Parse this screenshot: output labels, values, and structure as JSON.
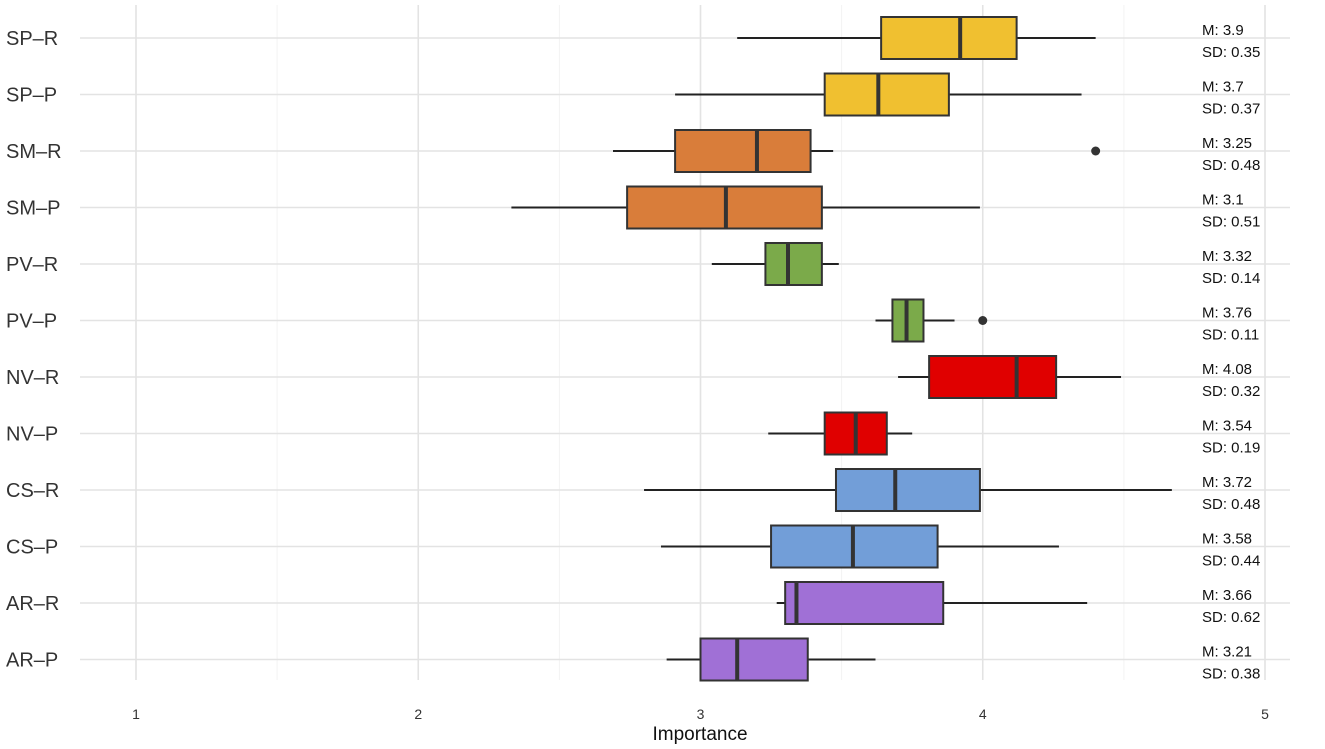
{
  "chart_data": {
    "type": "boxplot",
    "orientation": "horizontal",
    "title": "",
    "xlabel": "Importance",
    "ylabel": "",
    "xlim": [
      0.8,
      5.2
    ],
    "xticks": [
      1,
      2,
      3,
      4,
      5
    ],
    "xtick_labels": [
      "1",
      "2",
      "3",
      "4",
      "5"
    ],
    "grid": true,
    "categories": [
      "SP–R",
      "SP–P",
      "SM–R",
      "SM–P",
      "PV–R",
      "PV–P",
      "NV–R",
      "NV–P",
      "CS–R",
      "CS–P",
      "AR–R",
      "AR–P"
    ],
    "boxes": [
      {
        "label": "SP–R",
        "whisker_low": 3.13,
        "q1": 3.64,
        "median": 3.92,
        "q3": 4.12,
        "whisker_high": 4.4,
        "outliers": [],
        "color": "#F0C030",
        "mean_label": "M: 3.9",
        "sd_label": "SD: 0.35"
      },
      {
        "label": "SP–P",
        "whisker_low": 2.91,
        "q1": 3.44,
        "median": 3.63,
        "q3": 3.88,
        "whisker_high": 4.35,
        "outliers": [],
        "color": "#F0C030",
        "mean_label": "M: 3.7",
        "sd_label": "SD: 0.37"
      },
      {
        "label": "SM–R",
        "whisker_low": 2.69,
        "q1": 2.91,
        "median": 3.2,
        "q3": 3.39,
        "whisker_high": 3.47,
        "outliers": [
          4.4
        ],
        "color": "#D97D3A",
        "mean_label": "M: 3.25",
        "sd_label": "SD: 0.48"
      },
      {
        "label": "SM–P",
        "whisker_low": 2.33,
        "q1": 2.74,
        "median": 3.09,
        "q3": 3.43,
        "whisker_high": 3.99,
        "outliers": [],
        "color": "#D97D3A",
        "mean_label": "M: 3.1",
        "sd_label": "SD: 0.51"
      },
      {
        "label": "PV–R",
        "whisker_low": 3.04,
        "q1": 3.23,
        "median": 3.31,
        "q3": 3.43,
        "whisker_high": 3.49,
        "outliers": [],
        "color": "#7BAA4A",
        "mean_label": "M: 3.32",
        "sd_label": "SD: 0.14"
      },
      {
        "label": "PV–P",
        "whisker_low": 3.62,
        "q1": 3.68,
        "median": 3.73,
        "q3": 3.79,
        "whisker_high": 3.9,
        "outliers": [
          4.0
        ],
        "color": "#7BAA4A",
        "mean_label": "M: 3.76",
        "sd_label": "SD: 0.11"
      },
      {
        "label": "NV–R",
        "whisker_low": 3.7,
        "q1": 3.81,
        "median": 4.12,
        "q3": 4.26,
        "whisker_high": 4.49,
        "outliers": [],
        "color": "#E00000",
        "mean_label": "M: 4.08",
        "sd_label": "SD: 0.32"
      },
      {
        "label": "NV–P",
        "whisker_low": 3.24,
        "q1": 3.44,
        "median": 3.55,
        "q3": 3.66,
        "whisker_high": 3.75,
        "outliers": [],
        "color": "#E00000",
        "mean_label": "M: 3.54",
        "sd_label": "SD: 0.19"
      },
      {
        "label": "CS–R",
        "whisker_low": 2.8,
        "q1": 3.48,
        "median": 3.69,
        "q3": 3.99,
        "whisker_high": 4.67,
        "outliers": [],
        "color": "#729ED8",
        "mean_label": "M: 3.72",
        "sd_label": "SD: 0.48"
      },
      {
        "label": "CS–P",
        "whisker_low": 2.86,
        "q1": 3.25,
        "median": 3.54,
        "q3": 3.84,
        "whisker_high": 4.27,
        "outliers": [],
        "color": "#729ED8",
        "mean_label": "M: 3.58",
        "sd_label": "SD: 0.44"
      },
      {
        "label": "AR–R",
        "whisker_low": 3.27,
        "q1": 3.3,
        "median": 3.34,
        "q3": 3.86,
        "whisker_high": 4.37,
        "outliers": [],
        "color": "#A070D6",
        "mean_label": "M: 3.66",
        "sd_label": "SD: 0.62"
      },
      {
        "label": "AR–P",
        "whisker_low": 2.88,
        "q1": 3.0,
        "median": 3.13,
        "q3": 3.38,
        "whisker_high": 3.62,
        "outliers": [],
        "color": "#A070D6",
        "mean_label": "M: 3.21",
        "sd_label": "SD: 0.38"
      }
    ]
  }
}
